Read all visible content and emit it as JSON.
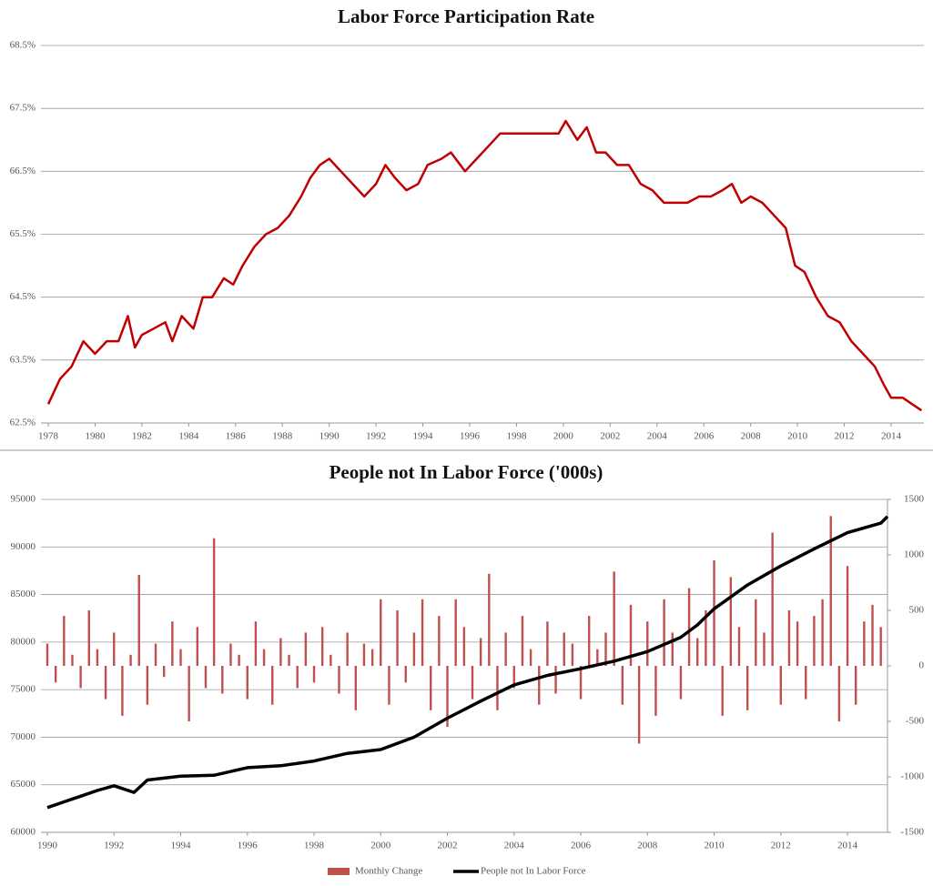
{
  "chart_data": [
    {
      "type": "line",
      "title": "Labor Force Participation Rate",
      "color": "#c00000",
      "grid": true,
      "x": [
        1978.0,
        1978.5,
        1979.0,
        1979.5,
        1980.0,
        1980.5,
        1981.0,
        1981.4,
        1981.7,
        1982.0,
        1982.5,
        1983.0,
        1983.3,
        1983.7,
        1984.2,
        1984.6,
        1985.0,
        1985.5,
        1985.9,
        1986.3,
        1986.8,
        1987.3,
        1987.8,
        1988.3,
        1988.8,
        1989.2,
        1989.6,
        1990.0,
        1990.5,
        1991.0,
        1991.5,
        1992.0,
        1992.4,
        1992.8,
        1993.3,
        1993.8,
        1994.2,
        1994.8,
        1995.2,
        1995.8,
        1996.3,
        1996.8,
        1997.3,
        1997.8,
        1998.3,
        1998.8,
        1999.3,
        1999.8,
        2000.1,
        2000.6,
        2001.0,
        2001.4,
        2001.8,
        2002.3,
        2002.8,
        2003.3,
        2003.8,
        2004.3,
        2004.8,
        2005.3,
        2005.8,
        2006.3,
        2006.8,
        2007.2,
        2007.6,
        2008.0,
        2008.5,
        2009.0,
        2009.5,
        2009.9,
        2010.3,
        2010.8,
        2011.3,
        2011.8,
        2012.3,
        2012.8,
        2013.3,
        2013.7,
        2014.0,
        2014.5,
        2014.9,
        2015.3
      ],
      "values": [
        62.8,
        63.2,
        63.4,
        63.8,
        63.6,
        63.8,
        63.8,
        64.2,
        63.7,
        63.9,
        64.0,
        64.1,
        63.8,
        64.2,
        64.0,
        64.5,
        64.5,
        64.8,
        64.7,
        65.0,
        65.3,
        65.5,
        65.6,
        65.8,
        66.1,
        66.4,
        66.6,
        66.7,
        66.5,
        66.3,
        66.1,
        66.3,
        66.6,
        66.4,
        66.2,
        66.3,
        66.6,
        66.7,
        66.8,
        66.5,
        66.7,
        66.9,
        67.1,
        67.1,
        67.1,
        67.1,
        67.1,
        67.1,
        67.3,
        67.0,
        67.2,
        66.8,
        66.8,
        66.6,
        66.6,
        66.3,
        66.2,
        66.0,
        66.0,
        66.0,
        66.1,
        66.1,
        66.2,
        66.3,
        66.0,
        66.1,
        66.0,
        65.8,
        65.6,
        65.0,
        64.9,
        64.5,
        64.2,
        64.1,
        63.8,
        63.6,
        63.4,
        63.1,
        62.9,
        62.9,
        62.8,
        62.7
      ],
      "xlim": [
        1978,
        2015.4
      ],
      "xticks": [
        1978,
        1980,
        1982,
        1984,
        1986,
        1988,
        1990,
        1992,
        1994,
        1996,
        1998,
        2000,
        2002,
        2004,
        2006,
        2008,
        2010,
        2012,
        2014
      ],
      "ylim": [
        62.5,
        68.5
      ],
      "yticks": [
        {
          "value": 62.5,
          "label": "62.5%"
        },
        {
          "value": 63.5,
          "label": "63.5%"
        },
        {
          "value": 64.5,
          "label": "64.5%"
        },
        {
          "value": 65.5,
          "label": "65.5%"
        },
        {
          "value": 66.5,
          "label": "66.5%"
        },
        {
          "value": 67.5,
          "label": "67.5%"
        },
        {
          "value": 68.5,
          "label": "68.5%"
        }
      ]
    },
    {
      "type": "bar-line",
      "title": "People not In Labor Force ('000s)",
      "grid": true,
      "xlim": [
        1990,
        2015.2
      ],
      "xticks": [
        1990,
        1992,
        1994,
        1996,
        1998,
        2000,
        2002,
        2004,
        2006,
        2008,
        2010,
        2012,
        2014
      ],
      "ylim": [
        60000,
        95000
      ],
      "yticks": [
        60000,
        65000,
        70000,
        75000,
        80000,
        85000,
        90000,
        95000
      ],
      "y2lim": [
        -1500,
        1500
      ],
      "y2ticks": [
        -1500,
        -1000,
        -500,
        0,
        500,
        1000,
        1500
      ],
      "series": [
        {
          "name": "Monthly Change",
          "color": "#c0504d",
          "axis": "y2",
          "kind": "bar",
          "x": [
            1990.0,
            1990.25,
            1990.5,
            1990.75,
            1991.0,
            1991.25,
            1991.5,
            1991.75,
            1992.0,
            1992.25,
            1992.5,
            1992.75,
            1993.0,
            1993.25,
            1993.5,
            1993.75,
            1994.0,
            1994.25,
            1994.5,
            1994.75,
            1995.0,
            1995.25,
            1995.5,
            1995.75,
            1996.0,
            1996.25,
            1996.5,
            1996.75,
            1997.0,
            1997.25,
            1997.5,
            1997.75,
            1998.0,
            1998.25,
            1998.5,
            1998.75,
            1999.0,
            1999.25,
            1999.5,
            1999.75,
            2000.0,
            2000.25,
            2000.5,
            2000.75,
            2001.0,
            2001.25,
            2001.5,
            2001.75,
            2002.0,
            2002.25,
            2002.5,
            2002.75,
            2003.0,
            2003.25,
            2003.5,
            2003.75,
            2004.0,
            2004.25,
            2004.5,
            2004.75,
            2005.0,
            2005.25,
            2005.5,
            2005.75,
            2006.0,
            2006.25,
            2006.5,
            2006.75,
            2007.0,
            2007.25,
            2007.5,
            2007.75,
            2008.0,
            2008.25,
            2008.5,
            2008.75,
            2009.0,
            2009.25,
            2009.5,
            2009.75,
            2010.0,
            2010.25,
            2010.5,
            2010.75,
            2011.0,
            2011.25,
            2011.5,
            2011.75,
            2012.0,
            2012.25,
            2012.5,
            2012.75,
            2013.0,
            2013.25,
            2013.5,
            2013.75,
            2014.0,
            2014.25,
            2014.5,
            2014.75,
            2015.0
          ],
          "values": [
            200,
            -150,
            450,
            100,
            -200,
            500,
            150,
            -300,
            300,
            -450,
            100,
            820,
            -350,
            200,
            -100,
            400,
            150,
            -500,
            350,
            -200,
            1150,
            -250,
            200,
            100,
            -300,
            400,
            150,
            -350,
            250,
            100,
            -200,
            300,
            -150,
            350,
            100,
            -250,
            300,
            -400,
            200,
            150,
            600,
            -350,
            500,
            -150,
            300,
            600,
            -400,
            450,
            -550,
            600,
            350,
            -300,
            250,
            830,
            -400,
            300,
            -200,
            450,
            150,
            -350,
            400,
            -250,
            300,
            200,
            -300,
            450,
            150,
            300,
            850,
            -350,
            550,
            -700,
            400,
            -450,
            600,
            300,
            -300,
            700,
            250,
            500,
            950,
            -450,
            800,
            350,
            -400,
            600,
            300,
            1200,
            -350,
            500,
            400,
            -300,
            450,
            600,
            1350,
            -500,
            900,
            -350,
            400,
            550,
            350
          ]
        },
        {
          "name": "People not In Labor Force",
          "color": "#000000",
          "kind": "line",
          "x": [
            1990.0,
            1990.5,
            1991.0,
            1991.5,
            1992.0,
            1992.6,
            1993.0,
            1993.5,
            1994.0,
            1995.0,
            1996.0,
            1997.0,
            1998.0,
            1999.0,
            2000.0,
            2001.0,
            2002.0,
            2003.0,
            2004.0,
            2005.0,
            2006.0,
            2007.0,
            2008.0,
            2009.0,
            2009.5,
            2010.0,
            2011.0,
            2012.0,
            2013.0,
            2014.0,
            2015.0,
            2015.2
          ],
          "values": [
            62600,
            63200,
            63800,
            64400,
            64900,
            64200,
            65500,
            65700,
            65900,
            66000,
            66800,
            67000,
            67500,
            68300,
            68700,
            70000,
            72000,
            73800,
            75500,
            76500,
            77200,
            78000,
            79000,
            80500,
            81800,
            83500,
            86000,
            88000,
            89800,
            91500,
            92500,
            93200
          ]
        }
      ]
    }
  ]
}
